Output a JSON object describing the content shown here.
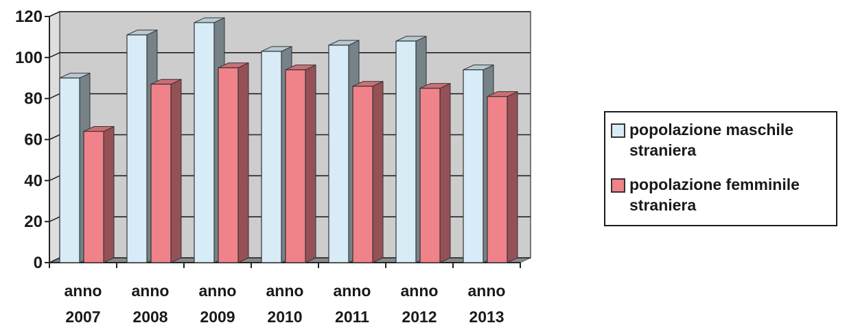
{
  "chart_data": {
    "type": "bar",
    "categories": [
      "anno 2007",
      "anno 2008",
      "anno 2009",
      "anno 2010",
      "anno 2011",
      "anno 2012",
      "anno 2013"
    ],
    "category_lines": [
      [
        "anno",
        "2007"
      ],
      [
        "anno",
        "2008"
      ],
      [
        "anno",
        "2009"
      ],
      [
        "anno",
        "2010"
      ],
      [
        "anno",
        "2011"
      ],
      [
        "anno",
        "2012"
      ],
      [
        "anno",
        "2013"
      ]
    ],
    "series": [
      {
        "name": "popolazione maschile straniera",
        "name_lines": [
          "popolazione maschile",
          "straniera"
        ],
        "color": "#d7ecf7",
        "values": [
          90,
          111,
          117,
          103,
          106,
          108,
          94
        ]
      },
      {
        "name": "popolazione femminile straniera",
        "name_lines": [
          "popolazione femminile",
          "straniera"
        ],
        "color": "#f0828a",
        "values": [
          64,
          87,
          95,
          94,
          86,
          85,
          81
        ]
      }
    ],
    "ylim": [
      0,
      120
    ],
    "yticks": [
      "0",
      "20",
      "40",
      "60",
      "80",
      "100",
      "120"
    ],
    "grid": true,
    "legend_position": "right",
    "plot_background": "#cdcdcd"
  }
}
